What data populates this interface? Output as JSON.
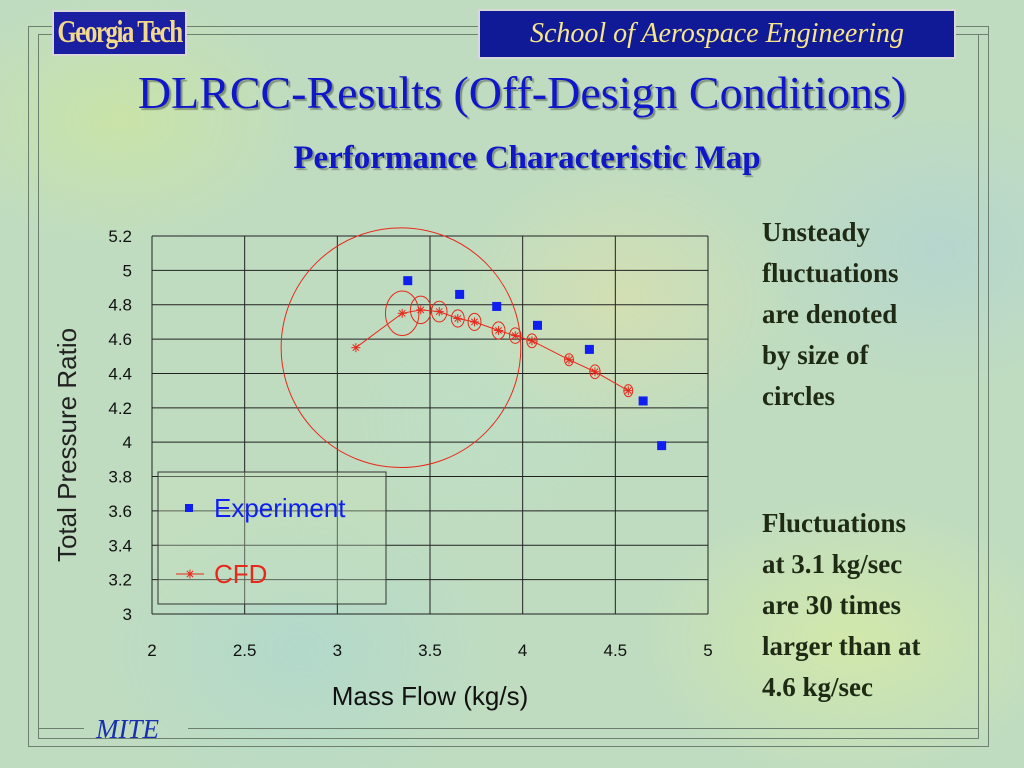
{
  "header": {
    "logo_text": "Georgia Tech",
    "school": "School of Aerospace Engineering"
  },
  "title": "DLRCC-Results (Off-Design Conditions)",
  "subtitle": "Performance Characteristic Map",
  "notes": {
    "unsteady": "Unsteady\nfluctuations\nare denoted\nby size of\ncircles",
    "fluctuations": "Fluctuations\nat 3.1 kg/sec\nare 30 times\nlarger than at\n4.6 kg/sec"
  },
  "footer": {
    "label": "MITE"
  },
  "colors": {
    "experiment": "#0f1ff0",
    "cfd": "#e8281c",
    "title": "#1017c8",
    "banner": "#101a96",
    "logo_text": "#f3d98a"
  },
  "chart_data": {
    "type": "scatter",
    "xlabel": "Mass Flow (kg/s)",
    "ylabel": "Total Pressure Ratio",
    "xlim": [
      2,
      5
    ],
    "ylim": [
      3,
      5.2
    ],
    "x_ticks": [
      "2",
      "2.5",
      "3",
      "3.5",
      "4",
      "4.5",
      "5"
    ],
    "y_ticks": [
      "3",
      "3.2",
      "3.4",
      "3.6",
      "3.8",
      "4",
      "4.2",
      "4.4",
      "4.6",
      "4.8",
      "5",
      "5.2"
    ],
    "grid": true,
    "legend_position": "bottom-left",
    "series": [
      {
        "name": "Experiment",
        "marker": "square",
        "x": [
          3.38,
          3.66,
          3.86,
          4.08,
          4.36,
          4.65,
          4.75
        ],
        "y": [
          4.94,
          4.86,
          4.79,
          4.68,
          4.54,
          4.24,
          3.98
        ]
      },
      {
        "name": "CFD",
        "marker": "asterisk",
        "line": true,
        "x": [
          3.1,
          3.35,
          3.45,
          3.55,
          3.65,
          3.74,
          3.87,
          3.96,
          4.05,
          4.25,
          4.39,
          4.57
        ],
        "y": [
          4.55,
          4.75,
          4.77,
          4.76,
          4.72,
          4.7,
          4.65,
          4.62,
          4.59,
          4.48,
          4.41,
          4.3
        ],
        "circle_radius": [
          0.75,
          0.13,
          0.08,
          0.06,
          0.05,
          0.05,
          0.05,
          0.045,
          0.04,
          0.035,
          0.04,
          0.035
        ]
      }
    ]
  }
}
